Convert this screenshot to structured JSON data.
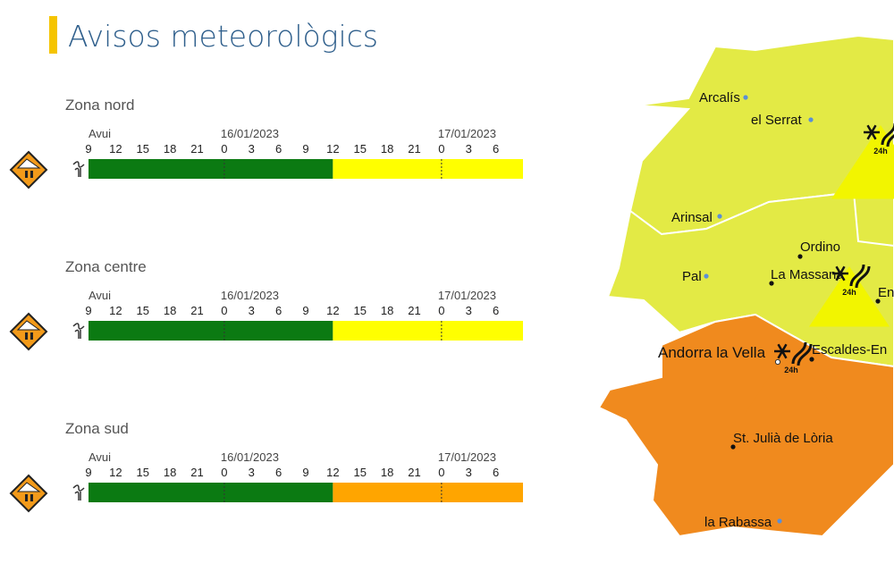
{
  "title": "Avisos meteorològics",
  "days": [
    "Avui",
    "16/01/2023",
    "17/01/2023"
  ],
  "hours": [
    9,
    12,
    15,
    18,
    21,
    0,
    3,
    6,
    9,
    12,
    15,
    18,
    21,
    0,
    3,
    6
  ],
  "zones": [
    {
      "name": "Zona nord",
      "segments": [
        {
          "color": "#0b7a12",
          "hours": 27
        },
        {
          "color": "#ffff00",
          "hours": 21
        }
      ]
    },
    {
      "name": "Zona centre",
      "segments": [
        {
          "color": "#0b7a12",
          "hours": 27
        },
        {
          "color": "#ffff00",
          "hours": 21
        }
      ]
    },
    {
      "name": "Zona sud",
      "segments": [
        {
          "color": "#0b7a12",
          "hours": 27
        },
        {
          "color": "#ffa500",
          "hours": 21
        }
      ]
    }
  ],
  "map": {
    "labels": [
      {
        "text": "Arcalís",
        "dot": "#5b8fd6"
      },
      {
        "text": "el Serrat",
        "dot": "#5b8fd6"
      },
      {
        "text": "Arinsal",
        "dot": "#5b8fd6"
      },
      {
        "text": "Ordino",
        "dot": "#111111"
      },
      {
        "text": "Pal",
        "dot": "#5b8fd6"
      },
      {
        "text": "La Massana",
        "dot": "#111111"
      },
      {
        "text": "En",
        "dot": "#111111"
      },
      {
        "text": "Andorra la Vella",
        "dot": "#ffffff"
      },
      {
        "text": "Escaldes-En",
        "dot": "#111111"
      },
      {
        "text": "St. Julià de Lòria",
        "dot": "#111111"
      },
      {
        "text": "la Rabassa",
        "dot": "#5b8fd6"
      }
    ],
    "symbols": [
      "24h",
      "24h",
      "24h"
    ]
  }
}
